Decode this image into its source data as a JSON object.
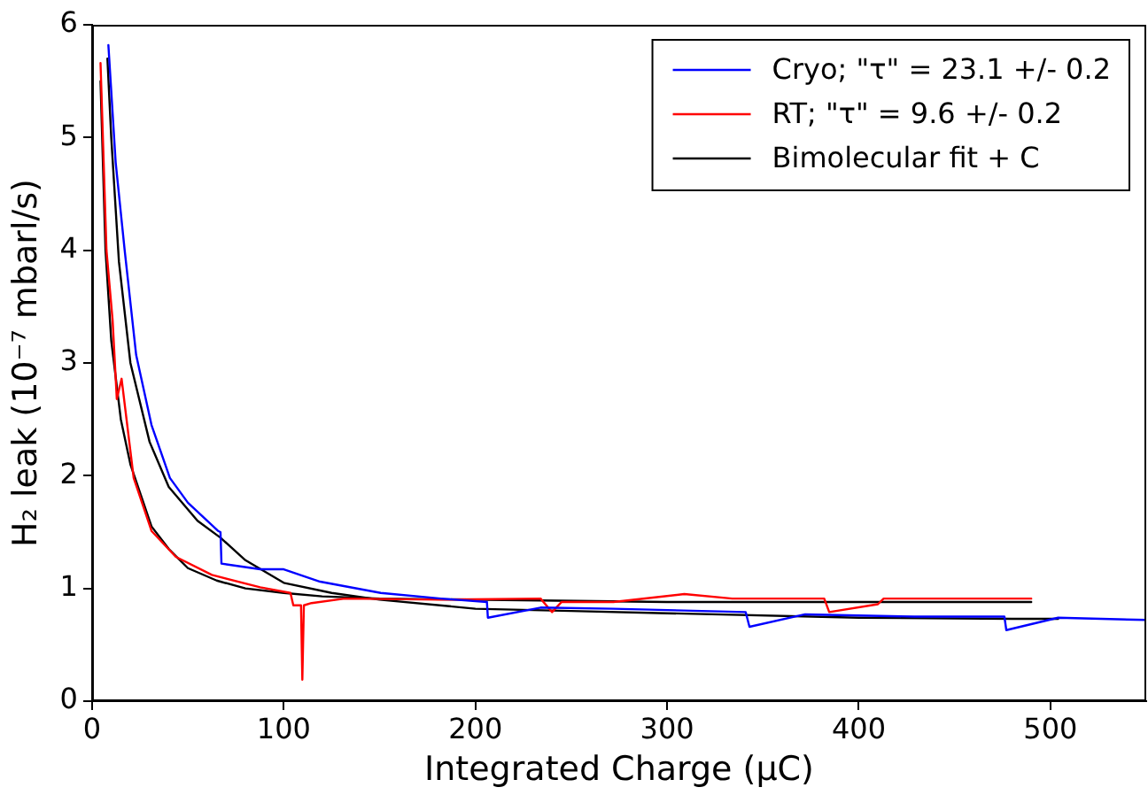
{
  "chart_data": {
    "type": "line",
    "xlabel": "Integrated Charge (μC)",
    "ylabel": "H₂ leak (10⁻⁷ mbarl/s)",
    "xlim": [
      0,
      550
    ],
    "xticks": [
      0,
      100,
      200,
      300,
      400,
      500
    ],
    "ylim": [
      0,
      6
    ],
    "yticks": [
      0,
      1,
      2,
      3,
      4,
      5,
      6
    ],
    "grid": false,
    "legend": "top right",
    "marker": "none",
    "line_style": "solid",
    "series": [
      {
        "name": "Cryo; \"τ\" = 23.1 +/- 0.2",
        "color": "#0000ff",
        "x": [
          8.5,
          12.3,
          17,
          23,
          31,
          40.6,
          50,
          65.7,
          67,
          67.5,
          87.7,
          100,
          119,
          150.6,
          182,
          206,
          206.5,
          234,
          272,
          341,
          343,
          372,
          429,
          476,
          477,
          504,
          550
        ],
        "values": [
          5.82,
          4.78,
          4.0,
          3.07,
          2.45,
          1.98,
          1.76,
          1.51,
          1.5,
          1.22,
          1.17,
          1.17,
          1.06,
          0.96,
          0.91,
          0.88,
          0.74,
          0.83,
          0.82,
          0.79,
          0.66,
          0.77,
          0.75,
          0.75,
          0.63,
          0.74,
          0.72
        ]
      },
      {
        "name": "RT; \"τ\" = 9.6 +/- 0.2",
        "color": "#ff0000",
        "x": [
          4.4,
          7.5,
          10.7,
          12.9,
          15.4,
          21.7,
          31,
          43.7,
          62.5,
          87.7,
          103.5,
          105,
          109,
          109.7,
          110.5,
          114.5,
          131.8,
          182,
          234,
          240,
          245,
          272,
          309,
          334,
          382,
          384.6,
          410,
          413,
          490
        ],
        "values": [
          5.66,
          4.0,
          3.38,
          2.68,
          2.86,
          1.98,
          1.51,
          1.28,
          1.12,
          1.01,
          0.96,
          0.85,
          0.85,
          0.19,
          0.85,
          0.87,
          0.91,
          0.9,
          0.91,
          0.79,
          0.88,
          0.88,
          0.95,
          0.91,
          0.91,
          0.79,
          0.86,
          0.91,
          0.91
        ]
      },
      {
        "name": "Bimolecular fit + C",
        "color": "#000000",
        "x": [
          8,
          10,
          14,
          20,
          30,
          40,
          55,
          67,
          80,
          100,
          125,
          150,
          200,
          250,
          300,
          400,
          480,
          504
        ],
        "values": [
          5.7,
          5.0,
          3.9,
          3.0,
          2.3,
          1.9,
          1.6,
          1.45,
          1.25,
          1.05,
          0.96,
          0.9,
          0.82,
          0.8,
          0.78,
          0.74,
          0.73,
          0.73
        ]
      },
      {
        "color": "#000000",
        "x": [
          4.4,
          7,
          10,
          15,
          20,
          31,
          40,
          50,
          65,
          80,
          100,
          120,
          150,
          300,
          400,
          490
        ],
        "values": [
          5.5,
          4.0,
          3.2,
          2.5,
          2.1,
          1.55,
          1.35,
          1.18,
          1.07,
          1.0,
          0.96,
          0.93,
          0.91,
          0.88,
          0.88,
          0.88
        ]
      }
    ]
  }
}
